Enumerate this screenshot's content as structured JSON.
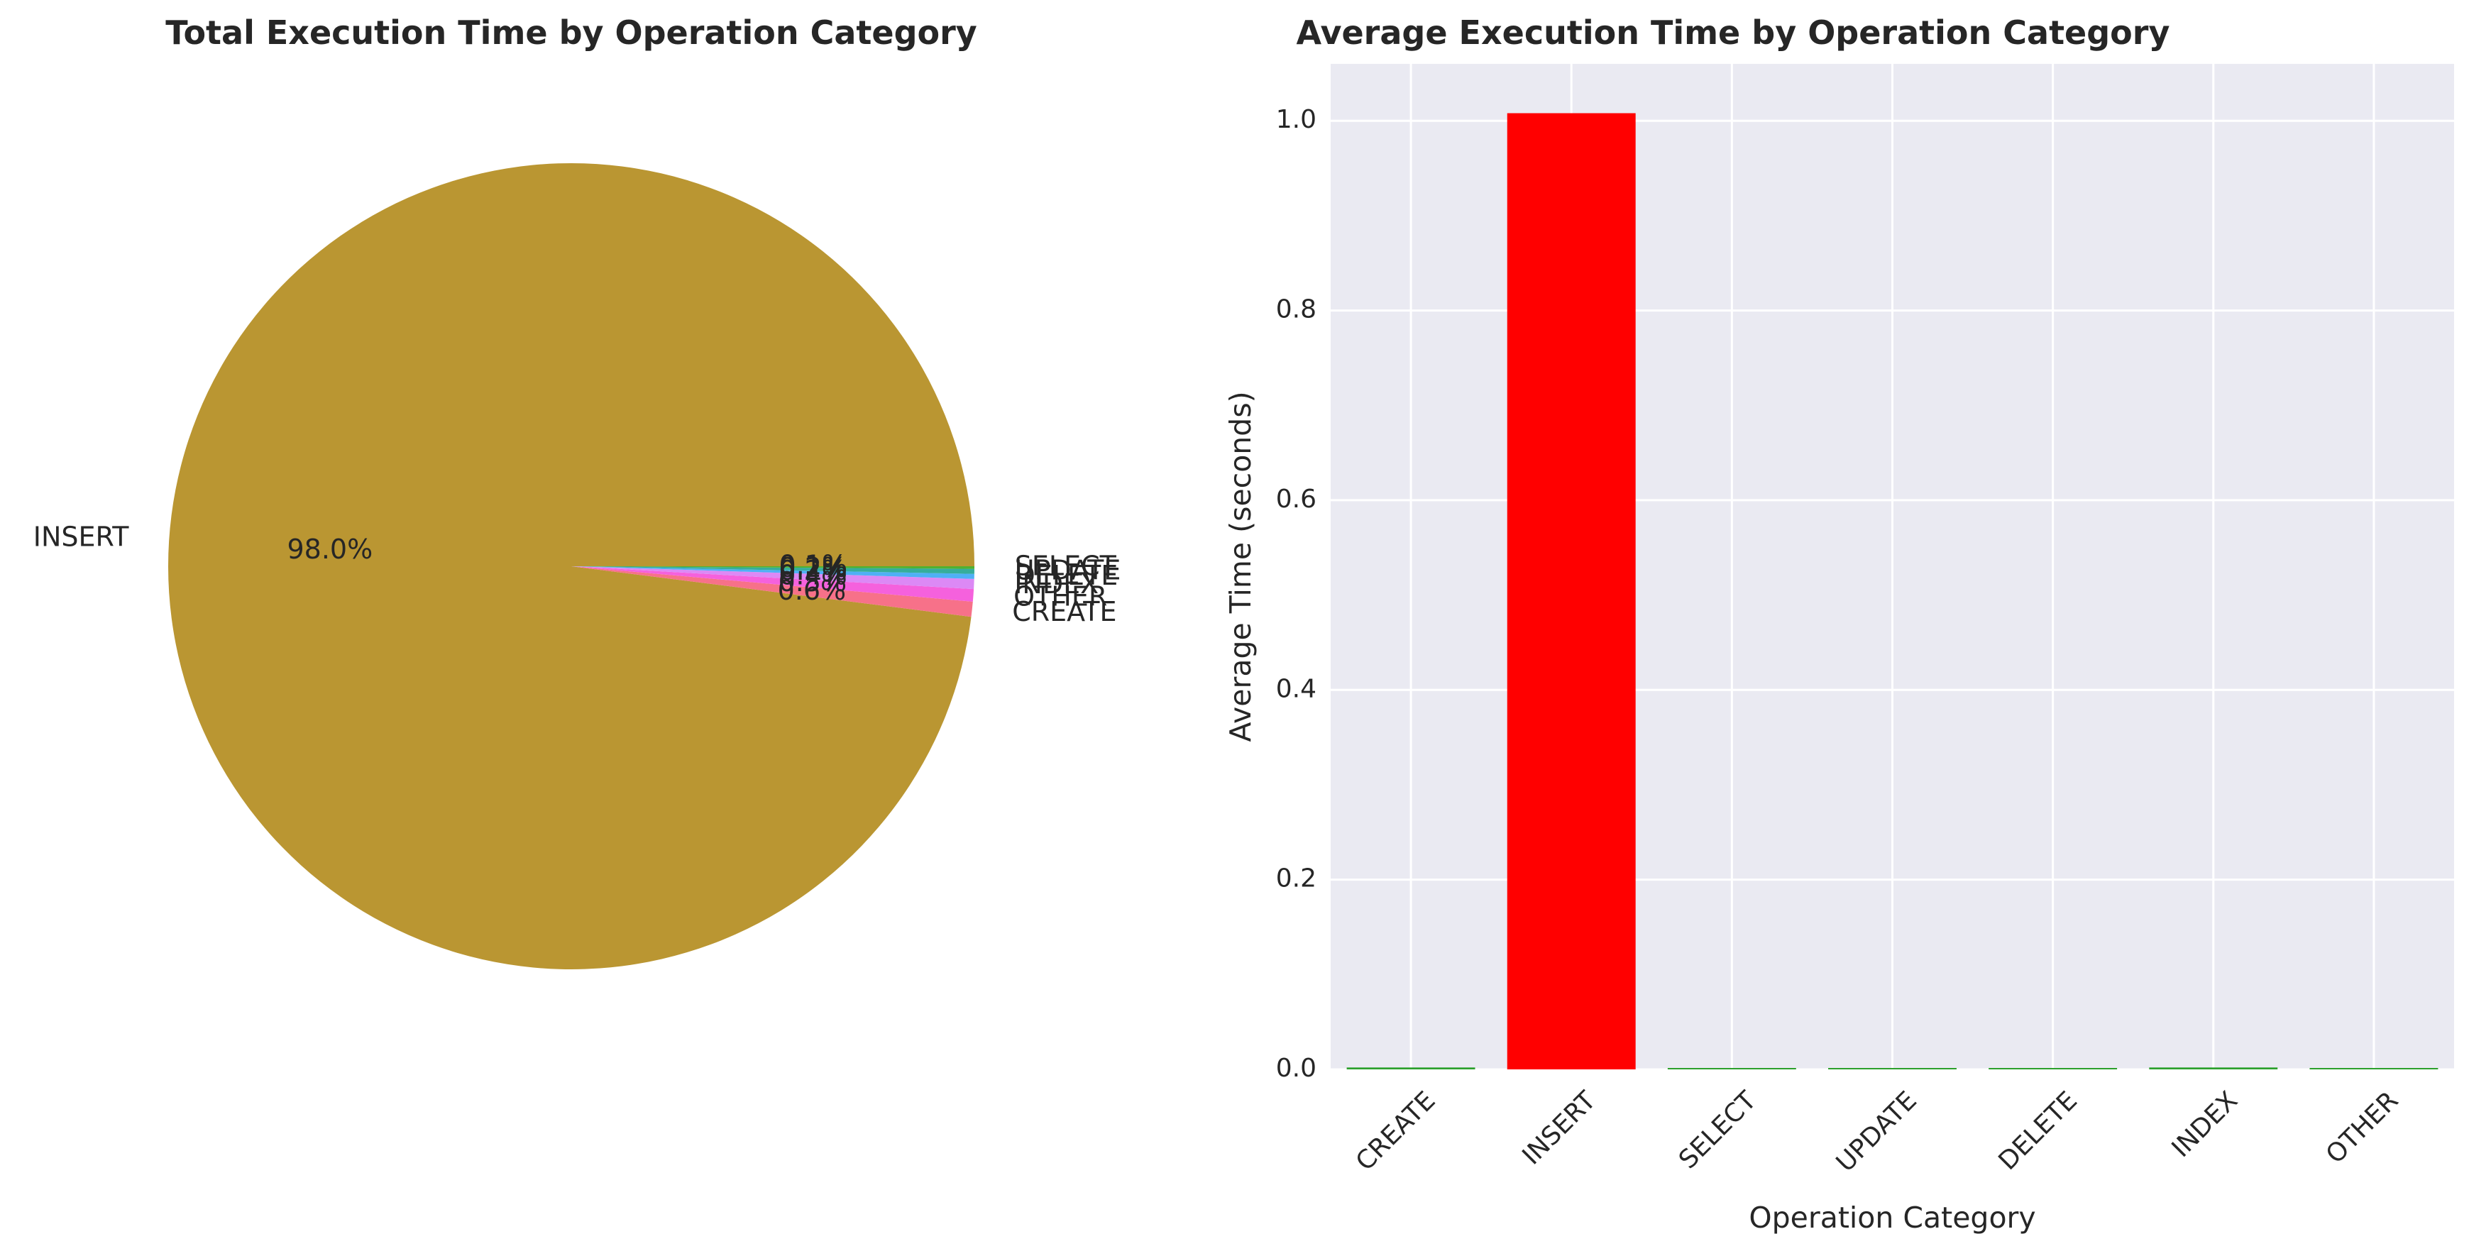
{
  "chart_data": [
    {
      "type": "pie",
      "title": "Total Execution Time by Operation Category",
      "slices": [
        {
          "label": "INSERT",
          "value": 98.0,
          "pct_label": "98.0%",
          "color": "#ba9632"
        },
        {
          "label": "CREATE",
          "value": 0.6,
          "pct_label": "0.6%",
          "color": "#f77189"
        },
        {
          "label": "OTHER",
          "value": 0.5,
          "pct_label": "0.5%",
          "color": "#f561dd"
        },
        {
          "label": "INDEX",
          "value": 0.4,
          "pct_label": "0.4%",
          "color": "#dc89f5"
        },
        {
          "label": "DELETE",
          "value": 0.2,
          "pct_label": "0.2%",
          "color": "#4fb0f5"
        },
        {
          "label": "UPDATE",
          "value": 0.2,
          "pct_label": "0.2%",
          "color": "#36ad9b"
        },
        {
          "label": "SELECT",
          "value": 0.1,
          "pct_label": "0.1%",
          "color": "#50b131"
        }
      ],
      "start_angle_deg": 0,
      "direction": "counterclockwise"
    },
    {
      "type": "bar",
      "title": "Average Execution Time by Operation Category",
      "xlabel": "Operation Category",
      "ylabel": "Average Time (seconds)",
      "categories": [
        "CREATE",
        "INSERT",
        "SELECT",
        "UPDATE",
        "DELETE",
        "INDEX",
        "OTHER"
      ],
      "values": [
        0.002,
        1.008,
        0.001,
        0.001,
        0.001,
        0.002,
        0.001
      ],
      "colors": [
        "#2ca02c",
        "#ff0000",
        "#2ca02c",
        "#2ca02c",
        "#2ca02c",
        "#2ca02c",
        "#2ca02c"
      ],
      "ylim": [
        0,
        1.06
      ],
      "yticks": [
        0.0,
        0.2,
        0.4,
        0.6,
        0.8,
        1.0
      ],
      "ytick_labels": [
        "0.0",
        "0.2",
        "0.4",
        "0.6",
        "0.8",
        "1.0"
      ],
      "grid": true,
      "background": "#eaeaf2"
    }
  ]
}
